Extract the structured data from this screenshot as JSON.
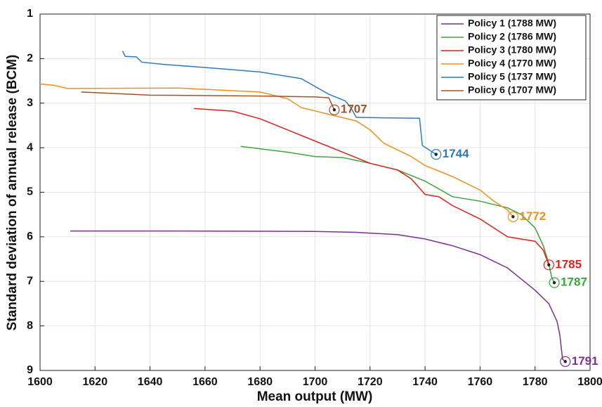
{
  "chart_data": {
    "type": "line",
    "x_label": "Mean output (MW)",
    "y_label": "Standard deviation of annual release (BCM)",
    "xlim": [
      1600,
      1800
    ],
    "xticks": [
      1600,
      1620,
      1640,
      1660,
      1680,
      1700,
      1720,
      1740,
      1760,
      1780,
      1800
    ],
    "ylim": [
      1,
      9
    ],
    "yticks": [
      1,
      2,
      3,
      4,
      5,
      6,
      7,
      8,
      9
    ],
    "y_reversed": true,
    "grid": true,
    "legend": "top-right",
    "series": [
      {
        "name": "Policy 1 (1788 MW)",
        "color": "#7e2f8e",
        "x": [
          1611,
          1650,
          1700,
          1715,
          1730,
          1740,
          1750,
          1760,
          1770,
          1775,
          1780,
          1785,
          1788,
          1789,
          1790,
          1791
        ],
        "values": [
          5.87,
          5.87,
          5.88,
          5.9,
          5.95,
          6.05,
          6.2,
          6.4,
          6.7,
          6.95,
          7.2,
          7.5,
          7.9,
          8.2,
          8.75,
          8.8
        ]
      },
      {
        "name": "Policy 2 (1786 MW)",
        "color": "#3aa63a",
        "x": [
          1673,
          1690,
          1700,
          1710,
          1720,
          1730,
          1740,
          1750,
          1760,
          1770,
          1775,
          1780,
          1783,
          1785,
          1786,
          1787
        ],
        "values": [
          3.97,
          4.1,
          4.2,
          4.22,
          4.35,
          4.5,
          4.75,
          5.1,
          5.2,
          5.35,
          5.5,
          5.8,
          6.2,
          6.6,
          6.9,
          7.03
        ]
      },
      {
        "name": "Policy 3 (1780 MW)",
        "color": "#e0201b",
        "x": [
          1656,
          1670,
          1680,
          1690,
          1700,
          1710,
          1720,
          1730,
          1735,
          1740,
          1745,
          1750,
          1760,
          1770,
          1780,
          1783,
          1785
        ],
        "values": [
          3.12,
          3.18,
          3.35,
          3.6,
          3.85,
          4.1,
          4.35,
          4.5,
          4.7,
          5.05,
          5.1,
          5.3,
          5.6,
          6.0,
          6.1,
          6.3,
          6.63
        ]
      },
      {
        "name": "Policy 4 (1770 MW)",
        "color": "#f28e1c",
        "x": [
          1600,
          1605,
          1610,
          1650,
          1680,
          1690,
          1695,
          1705,
          1715,
          1720,
          1725,
          1735,
          1740,
          1750,
          1760,
          1765,
          1770,
          1772
        ],
        "values": [
          2.57,
          2.6,
          2.67,
          2.66,
          2.75,
          2.9,
          3.1,
          3.25,
          3.4,
          3.6,
          3.9,
          4.2,
          4.4,
          4.65,
          4.95,
          5.2,
          5.4,
          5.55
        ]
      },
      {
        "name": "Policy 5 (1737 MW)",
        "color": "#2d7bbf",
        "x": [
          1630,
          1631,
          1635,
          1637,
          1645,
          1660,
          1680,
          1695,
          1705,
          1711,
          1713,
          1715,
          1725,
          1738,
          1739,
          1744
        ],
        "values": [
          1.83,
          1.95,
          1.96,
          2.08,
          2.13,
          2.2,
          2.3,
          2.45,
          2.8,
          2.95,
          3.1,
          3.32,
          3.33,
          3.34,
          3.95,
          4.15
        ]
      },
      {
        "name": "Policy 6 (1707 MW)",
        "color": "#a0522d",
        "x": [
          1615,
          1640,
          1680,
          1700,
          1705,
          1707
        ],
        "values": [
          2.75,
          2.82,
          2.84,
          2.86,
          2.88,
          3.15
        ]
      }
    ],
    "annotations": [
      {
        "text": "1791",
        "x": 1791,
        "y": 8.8,
        "color": "#7e2f8e"
      },
      {
        "text": "1787",
        "x": 1787,
        "y": 7.03,
        "color": "#3aa63a"
      },
      {
        "text": "1785",
        "x": 1785,
        "y": 6.63,
        "color": "#e0201b"
      },
      {
        "text": "1772",
        "x": 1772,
        "y": 5.55,
        "color": "#f28e1c"
      },
      {
        "text": "1744",
        "x": 1744,
        "y": 4.15,
        "color": "#2d7bbf"
      },
      {
        "text": "1707",
        "x": 1707,
        "y": 3.15,
        "color": "#a0522d"
      }
    ]
  }
}
